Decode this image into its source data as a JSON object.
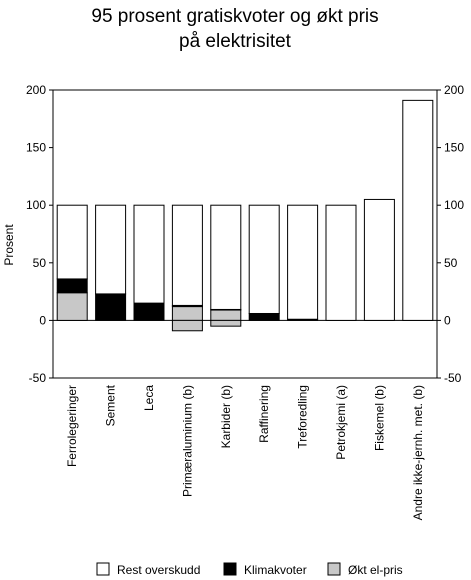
{
  "chart_data": {
    "type": "bar",
    "stacked": true,
    "title_lines": [
      "95 prosent gratiskvoter og økt pris",
      "på elektrisitet"
    ],
    "ylabel": "Prosent",
    "xlabel": "",
    "ylim": [
      -50,
      200
    ],
    "yticks": [
      -50,
      0,
      50,
      100,
      150,
      200
    ],
    "secondary_y_axis": true,
    "grid": false,
    "legend_position": "bottom",
    "categories": [
      "Ferrolegeringer",
      "Sement",
      "Leca",
      "Primæraluminium (b)",
      "Karbider (b)",
      "Raffinering",
      "Treforedling",
      "Petrokjemi (a)",
      "Fiskemel (b)",
      "Andre ikke-jernh. met. (b)"
    ],
    "series": [
      {
        "name": "Økt el-pris",
        "color": "#c8c8c8",
        "values": [
          24,
          0,
          0,
          12,
          9,
          0,
          0,
          0,
          0,
          0
        ],
        "negative": [
          0,
          0,
          0,
          -9,
          -5,
          0,
          0,
          0,
          0,
          0
        ]
      },
      {
        "name": "Klimakvoter",
        "color": "#000000",
        "values": [
          12,
          23,
          15,
          1,
          0.5,
          6,
          1,
          0,
          0,
          0
        ]
      },
      {
        "name": "Rest overskudd",
        "color": "#ffffff",
        "values": [
          64,
          77,
          85,
          87,
          90.5,
          94,
          99,
          100,
          105,
          191
        ]
      }
    ],
    "legend": [
      "Rest overskudd",
      "Klimakvoter",
      "Økt el-pris"
    ]
  }
}
